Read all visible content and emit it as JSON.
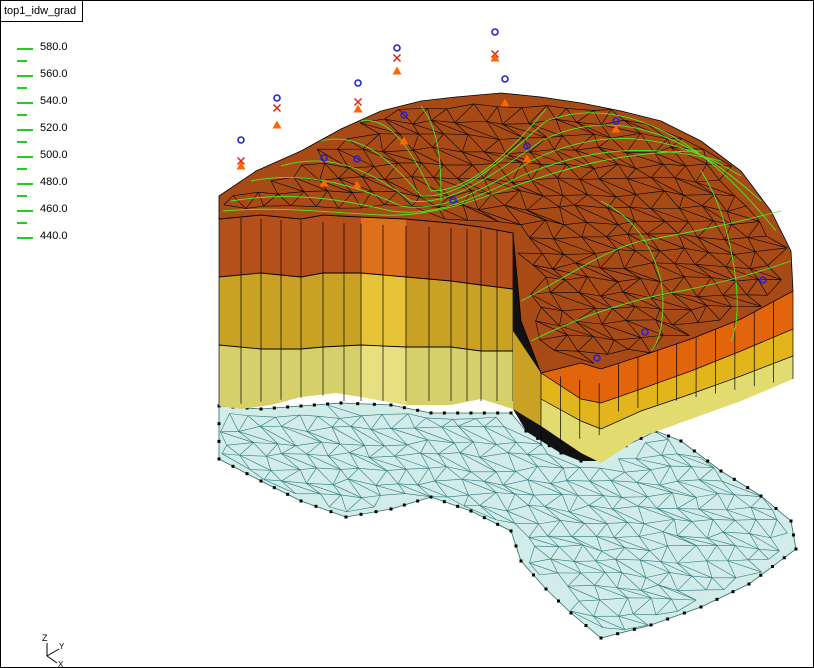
{
  "viewport": {
    "title": "top1_idw_grad"
  },
  "legend": {
    "entries": [
      "580.0",
      "560.0",
      "540.0",
      "520.0",
      "500.0",
      "480.0",
      "460.0",
      "440.0"
    ],
    "line_color": "#22cc22"
  },
  "axes": {
    "z": "Z",
    "y": "Y",
    "x": "X"
  },
  "colors": {
    "top_surface": "#a84a16",
    "layer_top": "#d2691a",
    "layer_mid": "#d9b62a",
    "layer_bottom": "#d8d470",
    "base_mesh": "#d2ecea",
    "contour": "#44ee22",
    "scatter_marker": "#2222dd",
    "x_marker": "#dd2222",
    "triangle_marker": "#ff6600"
  },
  "icons": [
    "circle-marker-icon",
    "x-marker-icon",
    "triangle-marker-icon",
    "axis-triad-icon"
  ]
}
